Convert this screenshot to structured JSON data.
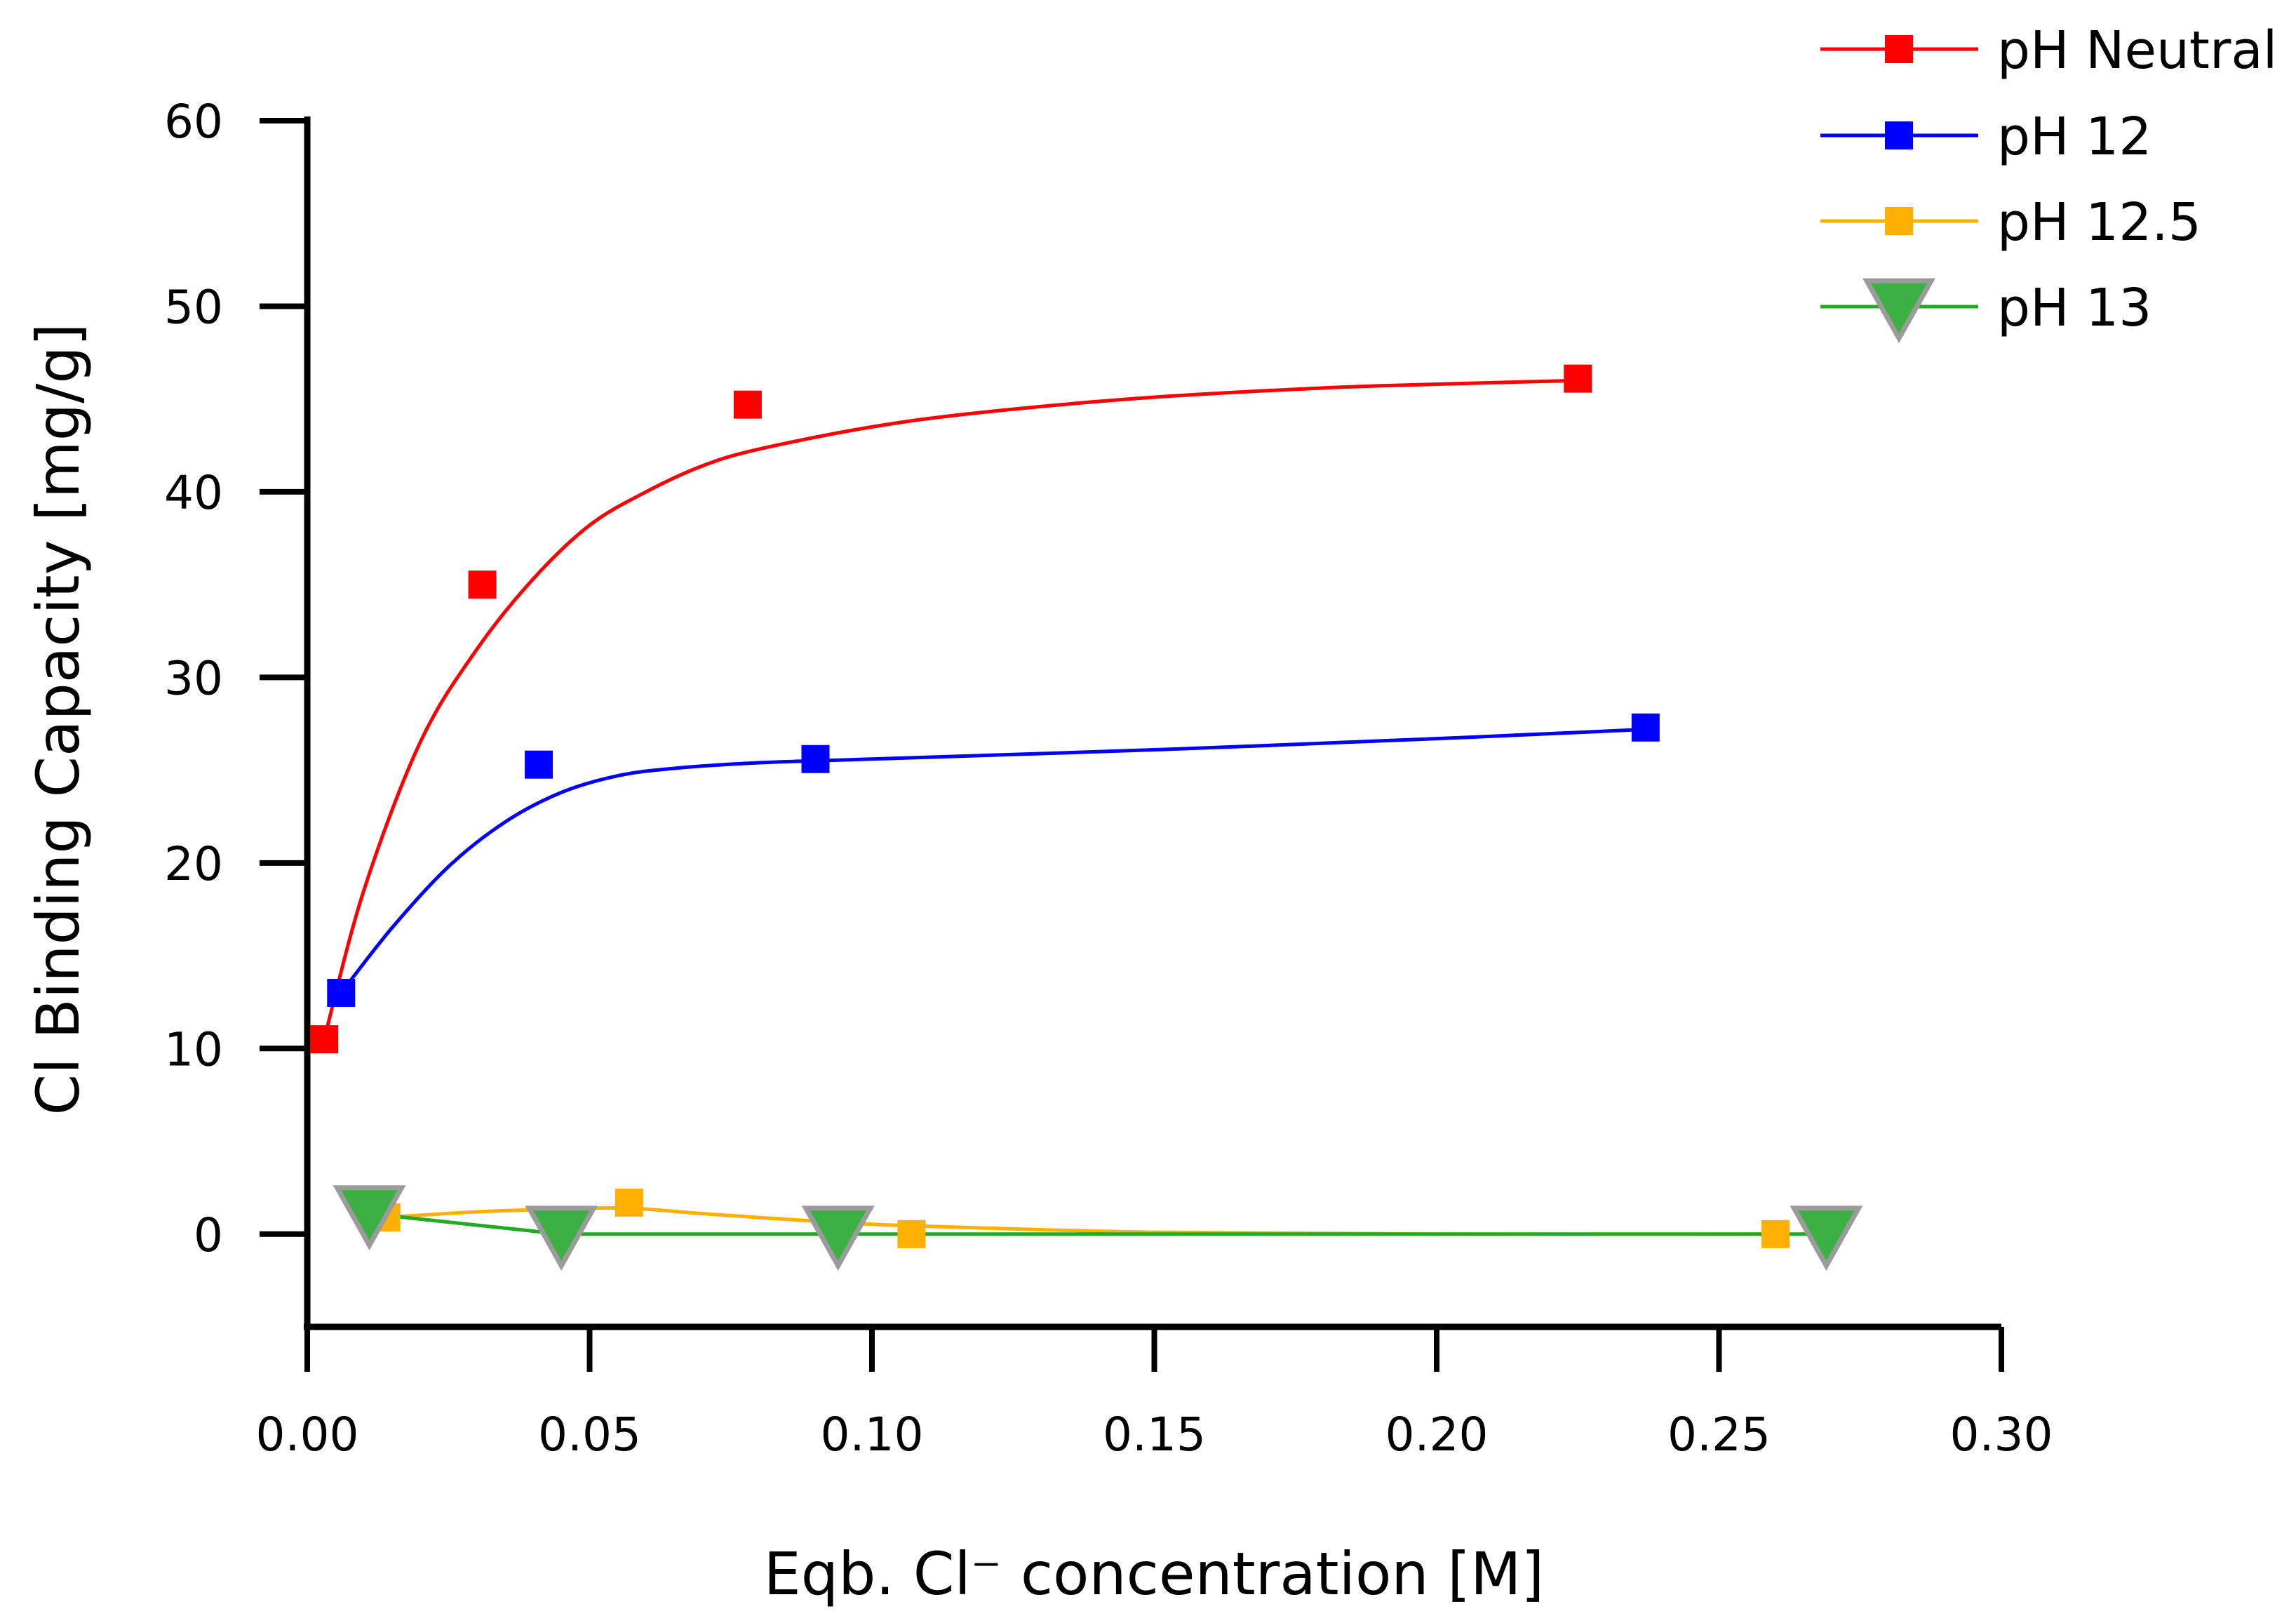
{
  "chart_data": {
    "type": "scatter",
    "xlabel": "Eqb. Cl⁻ concentration [M]",
    "ylabel": "Cl Binding Capacity [mg/g]",
    "xlim": [
      0,
      0.3
    ],
    "ylim": [
      -5,
      60
    ],
    "xticks": [
      0.0,
      0.05,
      0.1,
      0.15,
      0.2,
      0.25,
      0.3
    ],
    "xtick_labels": [
      "0.00",
      "0.05",
      "0.10",
      "0.15",
      "0.20",
      "0.25",
      "0.30"
    ],
    "yticks": [
      0,
      10,
      20,
      30,
      40,
      50,
      60
    ],
    "ytick_labels": [
      "0",
      "10",
      "20",
      "30",
      "40",
      "50",
      "60"
    ],
    "grid": false,
    "legend_position": "top-right",
    "series": [
      {
        "name": "pH Neutral",
        "color": "#ff0000",
        "marker": "square",
        "points": [
          [
            0.003,
            10.5
          ],
          [
            0.031,
            35.0
          ],
          [
            0.078,
            44.7
          ],
          [
            0.225,
            46.1
          ]
        ],
        "curve": [
          [
            0.003,
            10.5
          ],
          [
            0.01,
            18.5
          ],
          [
            0.02,
            26.5
          ],
          [
            0.03,
            31.5
          ],
          [
            0.04,
            35.3
          ],
          [
            0.05,
            38.2
          ],
          [
            0.06,
            40.0
          ],
          [
            0.07,
            41.4
          ],
          [
            0.08,
            42.3
          ],
          [
            0.1,
            43.5
          ],
          [
            0.12,
            44.3
          ],
          [
            0.15,
            45.1
          ],
          [
            0.18,
            45.6
          ],
          [
            0.2,
            45.8
          ],
          [
            0.225,
            46.0
          ]
        ]
      },
      {
        "name": "pH 12",
        "color": "#0000ff",
        "marker": "square",
        "points": [
          [
            0.006,
            13.0
          ],
          [
            0.041,
            25.3
          ],
          [
            0.09,
            25.6
          ],
          [
            0.237,
            27.3
          ]
        ],
        "curve": [
          [
            0.006,
            13.0
          ],
          [
            0.015,
            16.5
          ],
          [
            0.025,
            19.8
          ],
          [
            0.035,
            22.2
          ],
          [
            0.045,
            23.8
          ],
          [
            0.055,
            24.7
          ],
          [
            0.065,
            25.1
          ],
          [
            0.08,
            25.4
          ],
          [
            0.1,
            25.6
          ],
          [
            0.15,
            26.1
          ],
          [
            0.2,
            26.7
          ],
          [
            0.237,
            27.2
          ]
        ]
      },
      {
        "name": "pH 12.5",
        "color": "#ffb000",
        "marker": "square",
        "points": [
          [
            0.014,
            0.9
          ],
          [
            0.057,
            1.7
          ],
          [
            0.107,
            0.0
          ],
          [
            0.26,
            0.0
          ]
        ],
        "curve": [
          [
            0.014,
            0.9
          ],
          [
            0.03,
            1.2
          ],
          [
            0.045,
            1.35
          ],
          [
            0.057,
            1.4
          ],
          [
            0.07,
            1.1
          ],
          [
            0.09,
            0.7
          ],
          [
            0.107,
            0.45
          ],
          [
            0.15,
            0.1
          ],
          [
            0.2,
            0.0
          ],
          [
            0.26,
            0.0
          ]
        ]
      },
      {
        "name": "pH 13",
        "color": "#22aa22",
        "marker": "triangle-down",
        "points": [
          [
            0.011,
            1.1
          ],
          [
            0.045,
            0.0
          ],
          [
            0.094,
            0.0
          ],
          [
            0.269,
            0.0
          ]
        ],
        "curve": [
          [
            0.011,
            1.1
          ],
          [
            0.045,
            0.0
          ],
          [
            0.094,
            0.0
          ],
          [
            0.269,
            0.0
          ]
        ]
      }
    ]
  },
  "colors": {
    "axis": "#000000",
    "triangle_fill": "#3cb043",
    "triangle_stroke": "#9b9b9b"
  }
}
